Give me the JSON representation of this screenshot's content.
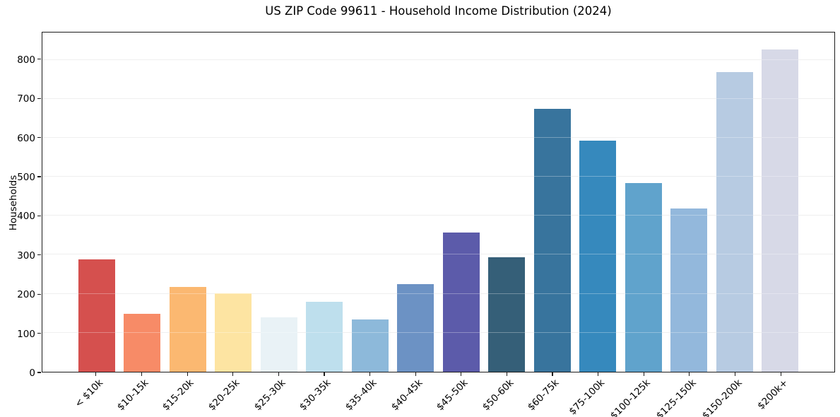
{
  "chart_data": {
    "type": "bar",
    "title": "US ZIP Code 99611 - Household Income Distribution (2024)",
    "xlabel": "",
    "ylabel": "Households",
    "categories": [
      "< $10k",
      "$10-15k",
      "$15-20k",
      "$20-25k",
      "$25-30k",
      "$30-35k",
      "$35-40k",
      "$40-45k",
      "$45-50k",
      "$50-60k",
      "$60-75k",
      "$75-100k",
      "$100-125k",
      "$125-150k",
      "$150-200k",
      "$200k+"
    ],
    "values": [
      288,
      148,
      217,
      201,
      139,
      179,
      134,
      224,
      357,
      294,
      674,
      592,
      484,
      419,
      768,
      827
    ],
    "bar_colors": [
      "#d5504e",
      "#f78b67",
      "#fbb871",
      "#fde4a2",
      "#e9f2f6",
      "#bedfed",
      "#8db9da",
      "#6c92c4",
      "#5c5baa",
      "#355f78",
      "#38749d",
      "#3689bd",
      "#60a3cc",
      "#93b8dc",
      "#b7cbe2",
      "#d7d9e7"
    ],
    "ylim": [
      0,
      870
    ],
    "yticks": [
      0,
      100,
      200,
      300,
      400,
      500,
      600,
      700,
      800
    ],
    "grid": "horizontal",
    "legend": "none",
    "background": "#ffffff",
    "grid_color": "#e8e8e8",
    "spine_color": "#1c1c1c",
    "text_color": "#000000"
  }
}
